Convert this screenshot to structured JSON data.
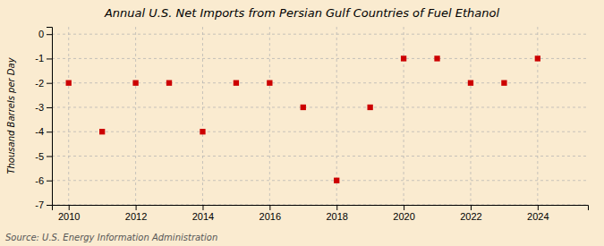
{
  "chart_data": {
    "type": "scatter",
    "title": "Annual U.S. Net Imports from Persian Gulf Countries of Fuel Ethanol",
    "y_label": "Thousand Barrels per Day",
    "annotations": [
      "Source: U.S. Energy Information Administration"
    ],
    "x": [
      2010,
      2011,
      2012,
      2013,
      2014,
      2015,
      2016,
      2017,
      2018,
      2019,
      2020,
      2021,
      2022,
      2023,
      2024
    ],
    "values": [
      -2,
      -4,
      -2,
      -2,
      -4,
      -2,
      -2,
      -3,
      -6,
      -3,
      -1,
      -1,
      -2,
      -2,
      -1
    ],
    "color": "#cc0000",
    "marker": "square",
    "xlim": [
      2009.5,
      2025.5
    ],
    "ylim": [
      -7,
      0.3
    ],
    "xticks": [
      2010,
      2012,
      2014,
      2016,
      2018,
      2020,
      2022,
      2024
    ],
    "yticks": [
      0,
      -1,
      -2,
      -3,
      -4,
      -5,
      -6,
      -7
    ],
    "grid": true
  }
}
